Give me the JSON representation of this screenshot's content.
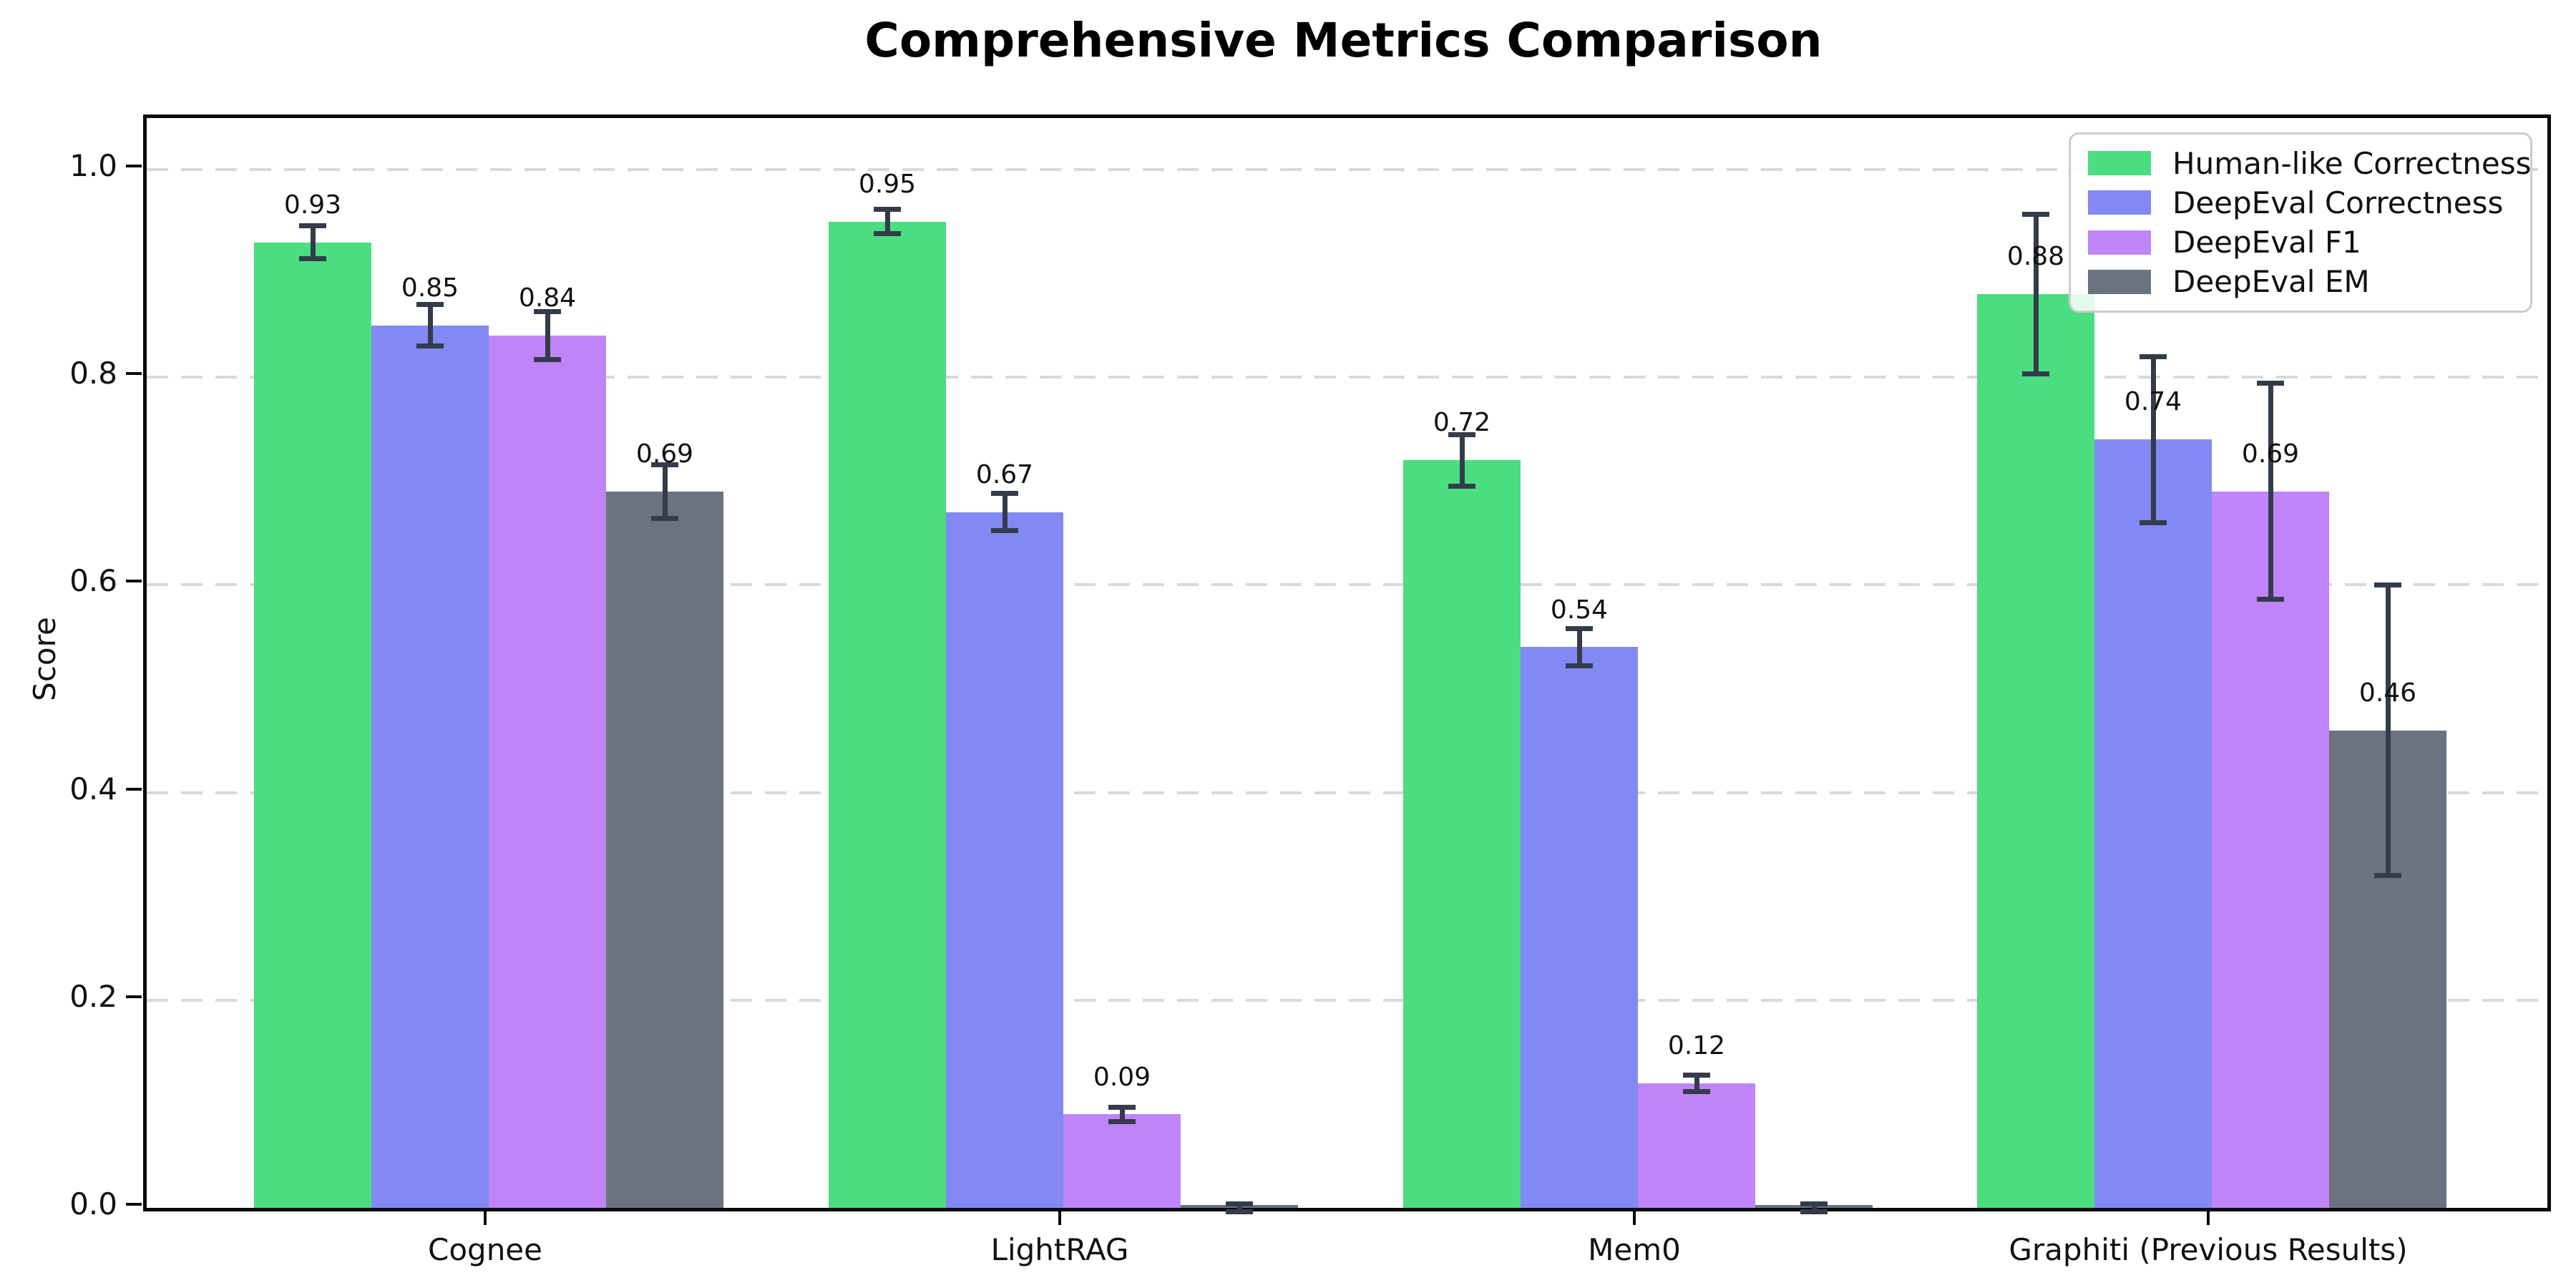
{
  "chart_data": {
    "type": "bar",
    "title": "Comprehensive Metrics Comparison",
    "ylabel": "Score",
    "xlabel": "",
    "categories": [
      "Cognee",
      "LightRAG",
      "Mem0",
      "Graphiti (Previous Results)"
    ],
    "series": [
      {
        "name": "Human-like Correctness",
        "color": "#4ade80",
        "values": [
          0.93,
          0.95,
          0.72,
          0.88
        ],
        "errors": [
          0.016,
          0.012,
          0.025,
          0.077
        ],
        "bar_labels": [
          "0.93",
          "0.95",
          "0.72",
          "0.88"
        ]
      },
      {
        "name": "DeepEval Correctness",
        "color": "#8289f4",
        "values": [
          0.85,
          0.67,
          0.54,
          0.74
        ],
        "errors": [
          0.02,
          0.018,
          0.018,
          0.08
        ],
        "bar_labels": [
          "0.85",
          "0.67",
          "0.54",
          "0.74"
        ]
      },
      {
        "name": "DeepEval F1",
        "color": "#bf84f7",
        "values": [
          0.84,
          0.09,
          0.12,
          0.69
        ],
        "errors": [
          0.023,
          0.007,
          0.008,
          0.104
        ],
        "bar_labels": [
          "0.84",
          "0.09",
          "0.12",
          "0.69"
        ]
      },
      {
        "name": "DeepEval EM",
        "color": "#6b7280",
        "values": [
          0.69,
          0.0,
          0.0,
          0.46
        ],
        "errors": [
          0.026,
          0.004,
          0.004,
          0.14
        ],
        "bar_labels": [
          "0.69",
          "",
          "",
          "0.46"
        ]
      }
    ],
    "y_ticks": [
      "0.0",
      "0.2",
      "0.4",
      "0.6",
      "0.8",
      "1.0"
    ],
    "y_tick_values": [
      0.0,
      0.2,
      0.4,
      0.6,
      0.8,
      1.0
    ],
    "ylim": [
      0,
      1.05
    ],
    "grid": "horizontal-dashed",
    "error_bar_color": "#343c4a",
    "legend_position": "upper-right"
  }
}
